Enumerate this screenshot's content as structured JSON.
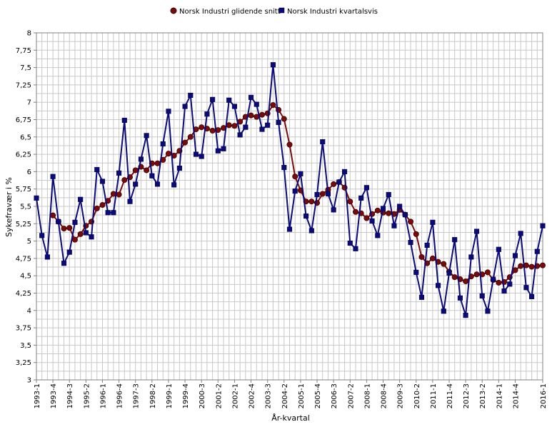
{
  "chart_data": {
    "type": "line",
    "xlabel": "År-kvartal",
    "ylabel": "Sykefravær i %",
    "ylim": [
      3,
      8
    ],
    "y_ticks": [
      "3",
      "3,25",
      "3,5",
      "3,75",
      "4",
      "4,25",
      "4,5",
      "4,75",
      "5",
      "5,25",
      "5,5",
      "5,75",
      "6",
      "6,25",
      "6,5",
      "6,75",
      "7",
      "7,25",
      "7,5",
      "7,75",
      "8"
    ],
    "x_tick_labels": [
      "1993-1",
      "1993-4",
      "1994-3",
      "1995-2",
      "1996-1",
      "1996-4",
      "1997-3",
      "1998-2",
      "1999-1",
      "1999-4",
      "2000-3",
      "2001-2",
      "2002-1",
      "2002-4",
      "2003-3",
      "2004-2",
      "2005-1",
      "2005-4",
      "2006-3",
      "2007-2",
      "2008-1",
      "2008-4",
      "2009-3",
      "2010-2",
      "2011-1",
      "2011-4",
      "2012-3",
      "2013-2",
      "2014-1",
      "2014-4",
      "2016-1"
    ],
    "grid": true,
    "legend_position": "top-center",
    "start_period": "1993-1",
    "end_period": "2016-1",
    "series": [
      {
        "name": "Norsk Industri glidende snitt",
        "color": "#7a0a0a",
        "marker": "circle",
        "start_index": 3,
        "values": [
          5.37,
          5.28,
          5.18,
          5.19,
          5.02,
          5.1,
          5.22,
          5.28,
          5.47,
          5.52,
          5.58,
          5.68,
          5.67,
          5.88,
          5.92,
          6.02,
          6.07,
          6.02,
          6.12,
          6.12,
          6.17,
          6.26,
          6.23,
          6.3,
          6.42,
          6.5,
          6.61,
          6.64,
          6.62,
          6.59,
          6.6,
          6.63,
          6.67,
          6.66,
          6.72,
          6.79,
          6.81,
          6.79,
          6.82,
          6.84,
          6.96,
          6.89,
          6.76,
          6.39,
          5.93,
          5.73,
          5.57,
          5.57,
          5.55,
          5.68,
          5.74,
          5.82,
          5.85,
          5.77,
          5.57,
          5.42,
          5.4,
          5.33,
          5.39,
          5.44,
          5.41,
          5.4,
          5.39,
          5.45,
          5.38,
          5.28,
          5.1,
          4.77,
          4.68,
          4.75,
          4.7,
          4.67,
          4.56,
          4.48,
          4.45,
          4.42,
          4.49,
          4.52,
          4.52,
          4.55,
          4.44,
          4.4,
          4.41,
          4.48,
          4.58,
          4.64,
          4.65,
          4.63,
          4.64,
          4.65
        ]
      },
      {
        "name": "Norsk Industri kvartalsvis",
        "color": "#0a0a7a",
        "marker": "square",
        "start_index": 0,
        "values": [
          5.62,
          5.08,
          4.77,
          5.93,
          5.28,
          4.68,
          4.84,
          5.27,
          5.6,
          5.12,
          5.06,
          6.03,
          5.86,
          5.41,
          5.41,
          5.98,
          6.74,
          5.57,
          5.82,
          6.18,
          6.52,
          5.94,
          5.82,
          6.4,
          6.87,
          5.81,
          6.05,
          6.94,
          7.1,
          6.25,
          6.22,
          6.83,
          7.04,
          6.3,
          6.33,
          7.03,
          6.94,
          6.53,
          6.64,
          7.07,
          6.97,
          6.61,
          6.67,
          7.54,
          6.71,
          6.06,
          5.17,
          5.72,
          5.97,
          5.36,
          5.15,
          5.67,
          6.43,
          5.68,
          5.45,
          5.85,
          6.0,
          4.97,
          4.89,
          5.62,
          5.77,
          5.29,
          5.08,
          5.47,
          5.67,
          5.22,
          5.5,
          5.38,
          4.98,
          4.55,
          4.19,
          4.94,
          5.27,
          4.36,
          3.99,
          4.54,
          5.02,
          4.18,
          3.93,
          4.77,
          5.14,
          4.21,
          3.99,
          4.45,
          4.88,
          4.28,
          4.38,
          4.79,
          5.11,
          4.33,
          4.2,
          4.85,
          5.22
        ]
      }
    ]
  }
}
